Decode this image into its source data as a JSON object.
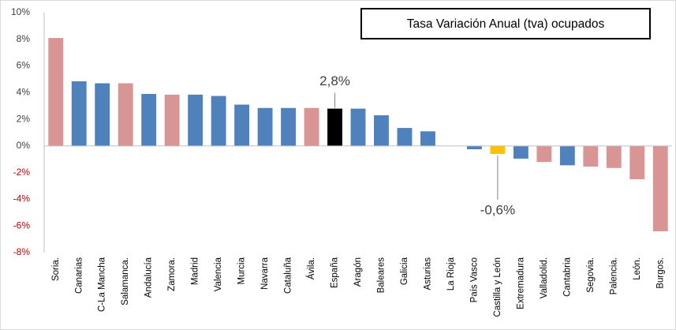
{
  "chart_data": {
    "type": "bar",
    "title": "Tasa Variación Anual (tva) ocupados",
    "categories": [
      "Soria.",
      "Canarias",
      "C-La Mancha",
      "Salamanca.",
      "Andalucía",
      "Zamora.",
      "Madrid",
      "Valencia",
      "Murcia",
      "Navarra",
      "Cataluña",
      "Ávila.",
      "España",
      "Aragón",
      "Baleares",
      "Galicia",
      "Asturias",
      "La Rioja",
      "País Vasco",
      "Castilla y León",
      "Extremadura",
      "Valladolid.",
      "Cantabria",
      "Segovia.",
      "Palencia.",
      "León.",
      "Burgos."
    ],
    "values": [
      8.1,
      4.85,
      4.7,
      4.7,
      3.9,
      3.85,
      3.85,
      3.75,
      3.1,
      2.85,
      2.85,
      2.85,
      2.8,
      2.8,
      2.3,
      1.35,
      1.1,
      0,
      -0.25,
      -0.6,
      -0.95,
      -1.2,
      -1.45,
      -1.55,
      -1.65,
      -2.5,
      -6.4
    ],
    "value_labels": [
      null,
      null,
      null,
      null,
      null,
      null,
      null,
      null,
      null,
      null,
      null,
      null,
      "2,8%",
      null,
      null,
      null,
      null,
      null,
      null,
      "-0,6%",
      null,
      null,
      null,
      null,
      null,
      null,
      null
    ],
    "colors": [
      "#d99594",
      "#4f81bd",
      "#4f81bd",
      "#d99594",
      "#4f81bd",
      "#d99594",
      "#4f81bd",
      "#4f81bd",
      "#4f81bd",
      "#4f81bd",
      "#4f81bd",
      "#d99594",
      "#000000",
      "#4f81bd",
      "#4f81bd",
      "#4f81bd",
      "#4f81bd",
      "#4f81bd",
      "#4f81bd",
      "#ffc000",
      "#4f81bd",
      "#d99594",
      "#4f81bd",
      "#d99594",
      "#d99594",
      "#d99594",
      "#d99594"
    ],
    "ylim": [
      -8,
      10
    ],
    "yticks": [
      {
        "value": -8,
        "label": "-8%"
      },
      {
        "value": -6,
        "label": "-6%"
      },
      {
        "value": -4,
        "label": "-4%"
      },
      {
        "value": -2,
        "label": "-2%"
      },
      {
        "value": 0,
        "label": "0%"
      },
      {
        "value": 2,
        "label": "2%"
      },
      {
        "value": 4,
        "label": "4%"
      },
      {
        "value": 6,
        "label": "6%"
      },
      {
        "value": 8,
        "label": "8%"
      },
      {
        "value": 10,
        "label": "10%"
      }
    ],
    "negative_tick_color": "#c00000",
    "grid": false
  }
}
